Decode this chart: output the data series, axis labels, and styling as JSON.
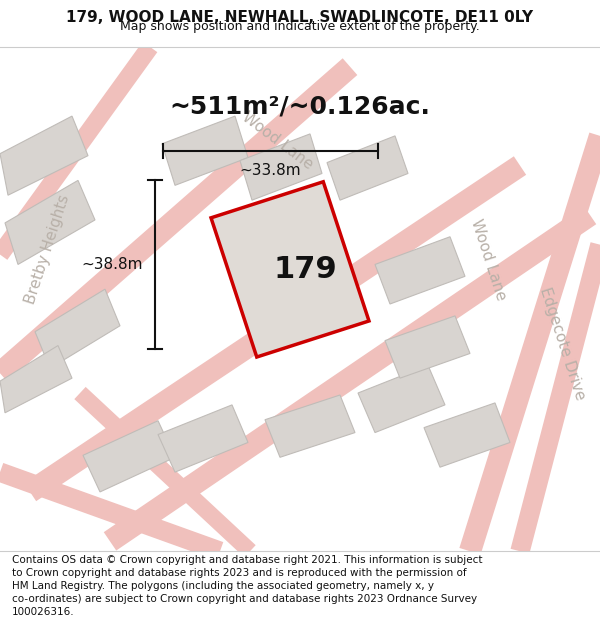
{
  "title": "179, WOOD LANE, NEWHALL, SWADLINCOTE, DE11 0LY",
  "subtitle": "Map shows position and indicative extent of the property.",
  "area_label": "~511m²/~0.126ac.",
  "plot_number": "179",
  "dim_width": "~33.8m",
  "dim_height": "~38.8m",
  "footer_lines": [
    "Contains OS data © Crown copyright and database right 2021. This information is subject",
    "to Crown copyright and database rights 2023 and is reproduced with the permission of",
    "HM Land Registry. The polygons (including the associated geometry, namely x, y",
    "co-ordinates) are subject to Crown copyright and database rights 2023 Ordnance Survey",
    "100026316."
  ],
  "map_bg": "#f0eeec",
  "plot_fill": "#e0dbd6",
  "plot_border": "#cc0000",
  "road_color": "#f0c0bc",
  "building_fill": "#d8d4d0",
  "building_border": "#c0bcb8",
  "dim_line_color": "#111111",
  "street_label_color": "#b8b0a8",
  "title_fontsize": 11,
  "subtitle_fontsize": 9,
  "area_fontsize": 18,
  "plot_num_fontsize": 22,
  "footer_fontsize": 7.5
}
